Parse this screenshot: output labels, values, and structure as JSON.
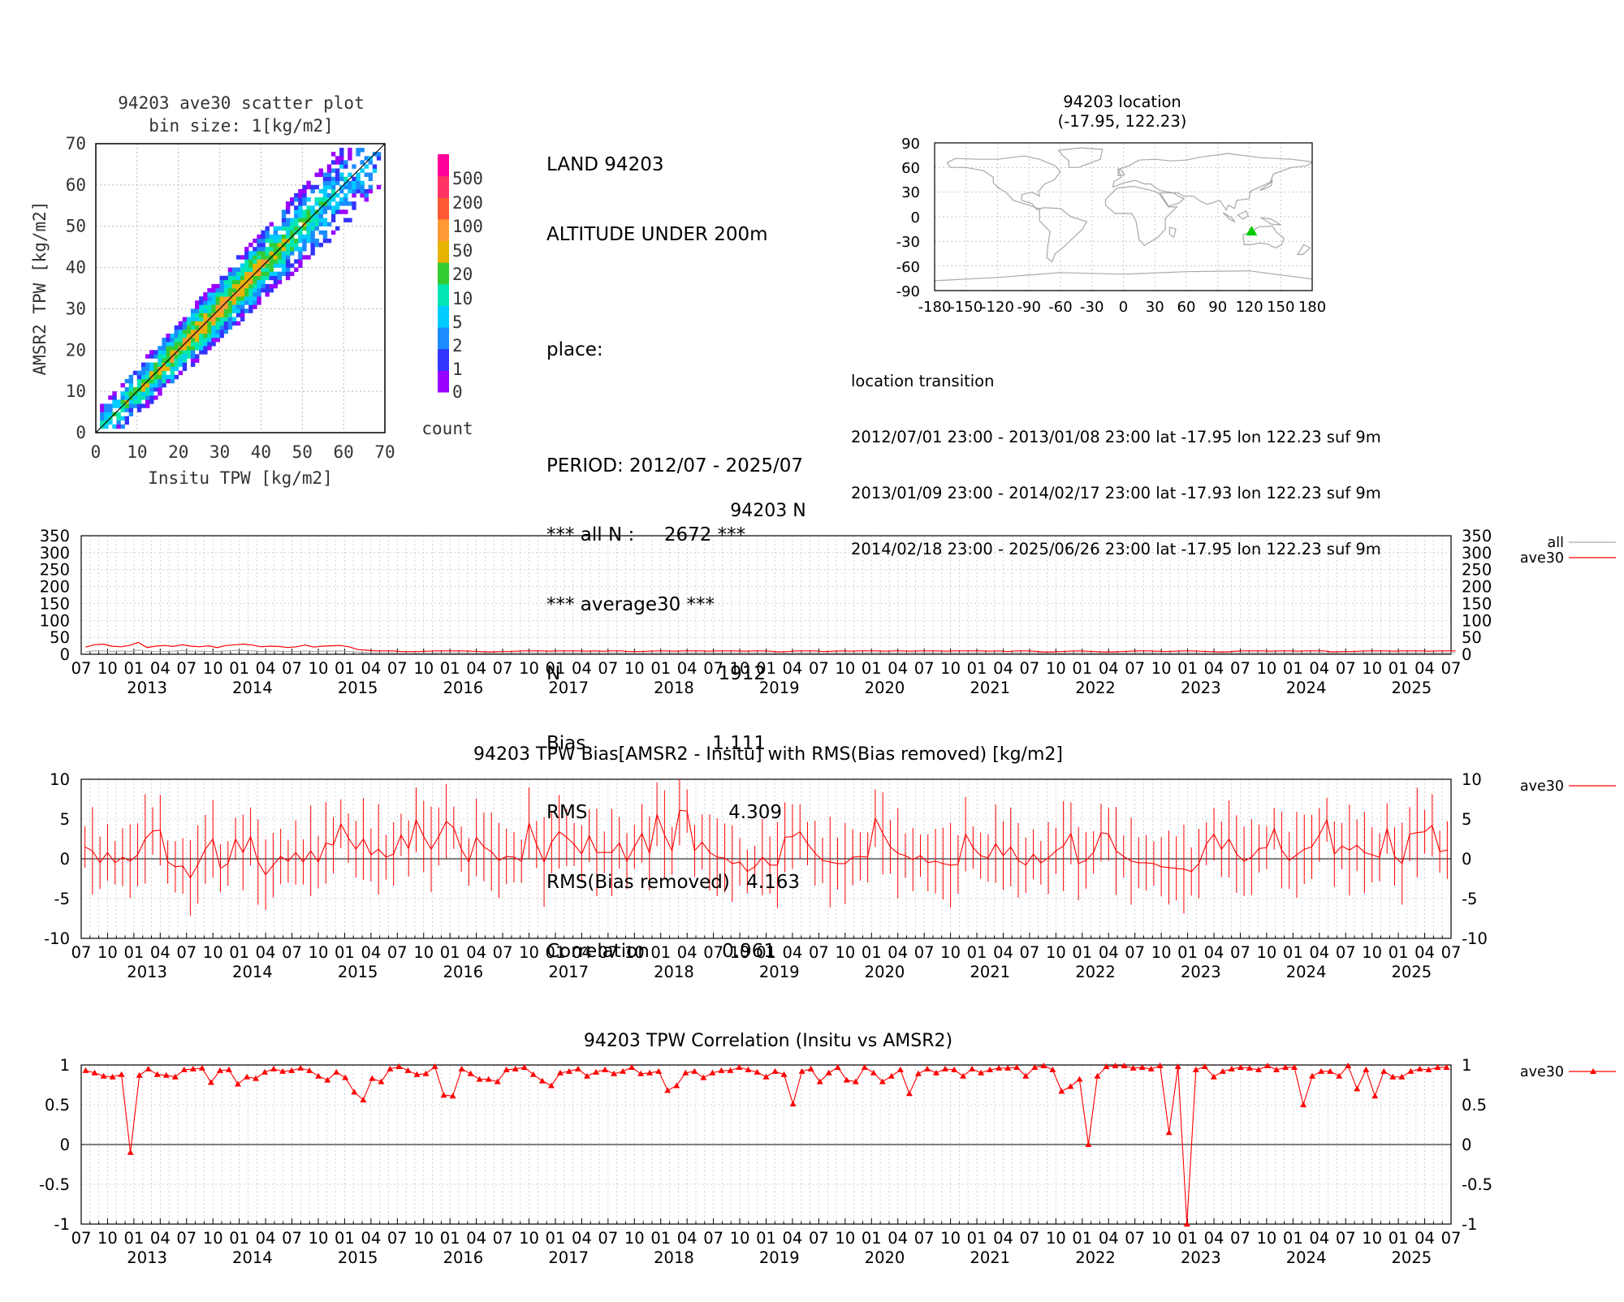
{
  "scatter": {
    "title": "94203 ave30 scatter plot",
    "subtitle": "bin size: 1[kg/m2]",
    "xlabel": "Insitu TPW [kg/m2]",
    "ylabel": "AMSR2 TPW [kg/m2]",
    "ticks": [
      "0",
      "10",
      "20",
      "30",
      "40",
      "50",
      "60",
      "70"
    ],
    "colorbar_label": "count",
    "colorbar_levels": [
      "0",
      "1",
      "2",
      "5",
      "10",
      "20",
      "50",
      "100",
      "200",
      "500"
    ],
    "colorbar_colors": [
      "#9900ff",
      "#3333ff",
      "#1a8cff",
      "#00ccff",
      "#00e6b3",
      "#33cc33",
      "#e6b300",
      "#ff9933",
      "#ff5a33",
      "#ff3366",
      "#ff0099"
    ]
  },
  "info": {
    "lines": [
      "LAND 94203",
      "ALTITUDE UNDER 200m",
      "",
      "place:",
      "",
      "PERIOD: 2012/07 - 2025/07",
      "*** all N :     2672 ***",
      "*** average30 ***"
    ],
    "stats": [
      {
        "label": "N",
        "value": "1912"
      },
      {
        "label": "Bias",
        "value": "1.111"
      },
      {
        "label": "RMS",
        "value": "4.309"
      },
      {
        "label": "RMS(Bias removed)",
        "value": "4.163"
      },
      {
        "label": "Correlation",
        "value": "0.961"
      }
    ]
  },
  "map": {
    "title": "94203 location",
    "subtitle": "(-17.95, 122.23)",
    "lat_ticks": [
      "90",
      "60",
      "30",
      "0",
      "-30",
      "-60",
      "-90"
    ],
    "lon_ticks": [
      "-180",
      "-150",
      "-120",
      "-90",
      "-60",
      "-30",
      "0",
      "30",
      "60",
      "90",
      "120",
      "150",
      "180"
    ],
    "station_lon": 122.23,
    "station_lat": -17.95,
    "marker_color": "#00cc00"
  },
  "transition": {
    "title": "location transition",
    "rows": [
      "2012/07/01 23:00 - 2013/01/08 23:00 lat -17.95 lon 122.23 suf 9m",
      "2013/01/09 23:00 - 2014/02/17 23:00 lat -17.93 lon 122.23 suf 9m",
      "2014/02/18 23:00 - 2025/06/26 23:00 lat -17.95 lon 122.23 suf 9m"
    ]
  },
  "panels": {
    "n": {
      "title": "94203 N",
      "yticks": [
        "350",
        "300",
        "250",
        "200",
        "150",
        "100",
        "50",
        "0"
      ],
      "legend": [
        "all",
        "ave30"
      ]
    },
    "bias": {
      "title": "94203 TPW Bias[AMSR2 - Insitu] with RMS(Bias removed) [kg/m2]",
      "yticks": [
        "10",
        "5",
        "0",
        "-5",
        "-10"
      ],
      "legend": [
        "ave30"
      ]
    },
    "corr": {
      "title": "94203 TPW Correlation (Insitu vs AMSR2)",
      "yticks": [
        "1",
        "0.5",
        "0",
        "-0.5",
        "-1"
      ],
      "legend": [
        "ave30"
      ]
    }
  },
  "time_axis": {
    "month_labels": [
      "07",
      "10",
      "01",
      "04",
      "07",
      "10",
      "01",
      "04",
      "07",
      "10",
      "01",
      "04",
      "07",
      "10",
      "01",
      "04",
      "07",
      "10",
      "01",
      "04",
      "07",
      "10",
      "01",
      "04",
      "07",
      "10",
      "01",
      "04",
      "07",
      "10",
      "01",
      "04",
      "07",
      "10",
      "01",
      "04",
      "07",
      "10",
      "01",
      "04",
      "07",
      "10",
      "01",
      "04",
      "07",
      "10",
      "01",
      "04",
      "07",
      "10",
      "01",
      "04",
      "07"
    ],
    "year_labels": [
      "2013",
      "2014",
      "2015",
      "2016",
      "2017",
      "2018",
      "2019",
      "2020",
      "2021",
      "2022",
      "2023",
      "2024",
      "2025"
    ]
  },
  "chart_data": [
    {
      "type": "heatmap",
      "title": "94203 ave30 scatter plot",
      "subtitle": "bin size: 1[kg/m2]",
      "xlabel": "Insitu TPW [kg/m2]",
      "ylabel": "AMSR2 TPW [kg/m2]",
      "xlim": [
        0,
        70
      ],
      "ylim": [
        0,
        70
      ],
      "count_levels": [
        0,
        1,
        2,
        5,
        10,
        20,
        50,
        100,
        200,
        500
      ],
      "one_to_one_line": true
    },
    {
      "type": "line",
      "title": "94203 N",
      "x_range": [
        "2012/07",
        "2025/07"
      ],
      "ylim": [
        0,
        350
      ],
      "series": [
        {
          "name": "all",
          "values": [
            7,
            10,
            10,
            8,
            10,
            8,
            12,
            9,
            8,
            8,
            9,
            11,
            9,
            9,
            8,
            8,
            10,
            11,
            11,
            10,
            8,
            9,
            9,
            8,
            8,
            10,
            8,
            9,
            9,
            10,
            8,
            6,
            5,
            4,
            4,
            4,
            3,
            3,
            3,
            3,
            4,
            4,
            4,
            4,
            4,
            3,
            3,
            3,
            3,
            4,
            4,
            4,
            4,
            4,
            4,
            4,
            4,
            4,
            4,
            4,
            4,
            4,
            3,
            3,
            4,
            4,
            4,
            4,
            4,
            4,
            4,
            4,
            4,
            4,
            4,
            4,
            4,
            4,
            4,
            3,
            3,
            4,
            4,
            4,
            3,
            4,
            4,
            4,
            4,
            4,
            4,
            4,
            4,
            4,
            4,
            4,
            4,
            4,
            4,
            4,
            4,
            4,
            4,
            4,
            4,
            3,
            4,
            4,
            4,
            3,
            3,
            3,
            4,
            4,
            4,
            3,
            3,
            3,
            3,
            4,
            4,
            4,
            4,
            3,
            4,
            4,
            4,
            4,
            3,
            3,
            3,
            4,
            4,
            4,
            4,
            4,
            4,
            4,
            4,
            4,
            4,
            4,
            3,
            3,
            3,
            4,
            4,
            4,
            4,
            4,
            4,
            4,
            4,
            4,
            4,
            4,
            4
          ]
        },
        {
          "name": "ave30",
          "values": [
            21,
            28,
            30,
            24,
            22,
            26,
            35,
            20,
            24,
            26,
            23,
            28,
            24,
            22,
            25,
            20,
            26,
            28,
            30,
            27,
            22,
            24,
            23,
            20,
            22,
            27,
            21,
            24,
            25,
            26,
            22,
            14,
            12,
            10,
            10,
            10,
            8,
            8,
            8,
            9,
            10,
            10,
            10,
            10,
            9,
            8,
            7,
            8,
            8,
            9,
            10,
            10,
            10,
            9,
            10,
            10,
            10,
            9,
            10,
            9,
            10,
            10,
            8,
            8,
            9,
            10,
            10,
            9,
            10,
            10,
            10,
            9,
            10,
            10,
            10,
            9,
            10,
            10,
            9,
            7,
            8,
            10,
            10,
            10,
            8,
            9,
            10,
            9,
            10,
            10,
            10,
            9,
            10,
            10,
            9,
            10,
            10,
            10,
            9,
            10,
            10,
            10,
            10,
            9,
            10,
            8,
            10,
            10,
            9,
            7,
            7,
            8,
            9,
            10,
            9,
            8,
            7,
            7,
            8,
            9,
            10,
            10,
            9,
            8,
            9,
            10,
            10,
            9,
            8,
            7,
            7,
            9,
            10,
            10,
            10,
            9,
            10,
            10,
            9,
            10,
            10,
            10,
            7,
            8,
            8,
            9,
            10,
            10,
            10,
            9,
            10,
            10,
            10,
            9,
            10,
            10,
            10
          ]
        }
      ]
    },
    {
      "type": "line",
      "title": "94203 TPW Bias[AMSR2 - Insitu] with RMS(Bias removed) [kg/m2]",
      "x_range": [
        "2012/07",
        "2025/07"
      ],
      "ylim": [
        -10,
        10
      ],
      "series": [
        {
          "name": "ave30",
          "values": [
            1.5,
            1.0,
            -0.5,
            0.8,
            -0.5,
            0.2,
            -0.3,
            0.5,
            2.5,
            3.5,
            3.6,
            -0.4,
            -1.0,
            -0.9,
            -2.4,
            -0.7,
            1.2,
            2.5,
            -1.2,
            -0.6,
            2.5,
            0.8,
            2.8,
            -0.4,
            -2.0,
            -0.8,
            0.3,
            -0.3,
            0.8,
            -0.4,
            1.0,
            -0.4,
            2.0,
            1.7,
            4.4,
            2.6,
            1.2,
            2.5,
            0.5,
            1.2,
            0.2,
            0.6,
            3.0,
            1.3,
            4.9,
            2.8,
            1.2,
            2.8,
            4.7,
            3.9,
            1.2,
            -0.4,
            2.7,
            1.5,
            0.9,
            -0.2,
            0.3,
            0.2,
            -0.3,
            4.5,
            1.8,
            -0.4,
            2.1,
            3.4,
            2.7,
            1.8,
            0.6,
            2.9,
            0.8,
            0.8,
            0.8,
            2.0,
            -0.3,
            1.5,
            3.2,
            0.7,
            5.6,
            3.0,
            1.0,
            6.1,
            6.0,
            1.0,
            2.1,
            0.8,
            0.2,
            0.1,
            -0.6,
            -0.4,
            -1.6,
            -1.0,
            0.2,
            -0.8,
            -0.8,
            2.7,
            2.8,
            3.4,
            1.9,
            0.7,
            -0.2,
            -0.4,
            -0.6,
            -0.6,
            0.2,
            0.3,
            0.2,
            5.1,
            3.2,
            1.5,
            0.7,
            0.4,
            -0.1,
            0.4,
            -0.5,
            -0.3,
            -0.6,
            -0.8,
            -0.7,
            3.1,
            1.4,
            0.4,
            0.1,
            1.9,
            0.4,
            1.5,
            -0.2,
            -0.8,
            0.6,
            -0.5,
            0.1,
            1.0,
            1.6,
            3.2,
            -0.6,
            -0.2,
            0.8,
            3.3,
            3.1,
            1.0,
            0.3,
            -0.3,
            -0.5,
            -0.5,
            -0.6,
            -1.0,
            -1.1,
            -1.2,
            -1.3,
            -1.6,
            -0.6,
            1.9,
            3.1,
            1.2,
            2.5,
            0.6,
            -0.3,
            0.2,
            1.3,
            1.4,
            3.8,
            1.1,
            -0.2,
            0.5,
            1.2,
            1.5,
            3.0,
            4.9,
            0.6,
            1.6,
            1.1,
            1.7,
            0.8,
            0.5,
            0.2,
            3.8,
            0.3,
            -0.6,
            3.1,
            3.3,
            3.4,
            4.2,
            0.9,
            1.1
          ],
          "rms_bias_removed_error_bars": true
        }
      ]
    },
    {
      "type": "line",
      "title": "94203 TPW Correlation (Insitu vs AMSR2)",
      "x_range": [
        "2012/07",
        "2025/07"
      ],
      "ylim": [
        -1,
        1
      ],
      "series": [
        {
          "name": "ave30",
          "values": [
            0.93,
            0.9,
            0.86,
            0.85,
            0.88,
            -0.1,
            0.87,
            0.95,
            0.88,
            0.87,
            0.85,
            0.94,
            0.95,
            0.96,
            0.78,
            0.93,
            0.94,
            0.76,
            0.85,
            0.83,
            0.91,
            0.95,
            0.92,
            0.93,
            0.96,
            0.93,
            0.86,
            0.81,
            0.91,
            0.84,
            0.66,
            0.56,
            0.83,
            0.79,
            0.95,
            0.98,
            0.93,
            0.88,
            0.89,
            0.98,
            0.62,
            0.61,
            0.95,
            0.89,
            0.82,
            0.82,
            0.79,
            0.94,
            0.95,
            0.97,
            0.88,
            0.8,
            0.74,
            0.9,
            0.92,
            0.95,
            0.86,
            0.91,
            0.94,
            0.89,
            0.92,
            0.97,
            0.89,
            0.9,
            0.92,
            0.68,
            0.74,
            0.9,
            0.92,
            0.84,
            0.9,
            0.93,
            0.93,
            0.97,
            0.94,
            0.91,
            0.85,
            0.92,
            0.88,
            0.51,
            0.92,
            0.95,
            0.79,
            0.9,
            0.97,
            0.81,
            0.79,
            0.97,
            0.9,
            0.79,
            0.86,
            0.94,
            0.64,
            0.89,
            0.95,
            0.9,
            0.95,
            0.94,
            0.86,
            0.95,
            0.9,
            0.94,
            0.96,
            0.96,
            0.97,
            0.86,
            0.97,
            0.99,
            0.94,
            0.67,
            0.73,
            0.82,
            0.0,
            0.86,
            0.98,
            0.99,
            0.99,
            0.96,
            0.97,
            0.95,
            0.99,
            0.15,
            0.98,
            -1.0,
            0.94,
            0.98,
            0.85,
            0.92,
            0.95,
            0.97,
            0.96,
            0.94,
            0.99,
            0.94,
            0.97,
            0.97,
            0.5,
            0.86,
            0.92,
            0.92,
            0.86,
            0.99,
            0.7,
            0.94,
            0.61,
            0.92,
            0.85,
            0.85,
            0.92,
            0.95,
            0.94,
            0.97,
            0.97
          ]
        }
      ]
    }
  ]
}
